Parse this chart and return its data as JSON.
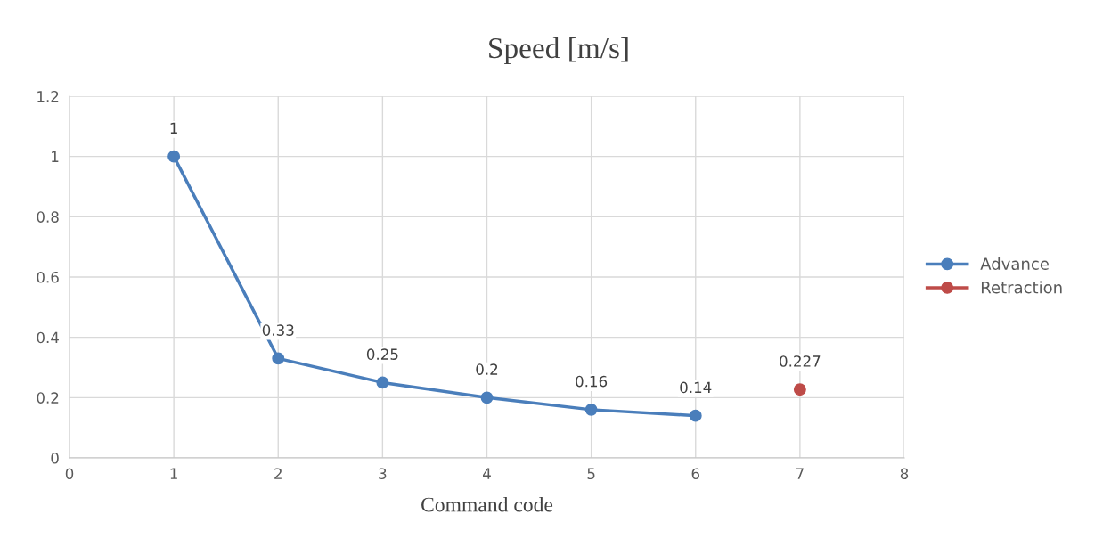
{
  "chart_data": {
    "type": "line",
    "title": "Speed [m/s]",
    "xlabel": "Command code",
    "series": [
      {
        "name": "Advance",
        "color": "#4a7ebb",
        "x": [
          1,
          2,
          3,
          4,
          5,
          6
        ],
        "values": [
          1,
          0.33,
          0.25,
          0.2,
          0.16,
          0.14
        ]
      },
      {
        "name": "Retraction",
        "color": "#be4b48",
        "x": [
          7
        ],
        "values": [
          0.227
        ]
      }
    ],
    "xlim": [
      0,
      8
    ],
    "xticks": [
      0,
      1,
      2,
      3,
      4,
      5,
      6,
      7,
      8
    ],
    "ylim": [
      0,
      1.2
    ],
    "yticks": [
      0,
      0.2,
      0.4,
      0.6,
      0.8,
      1,
      1.2
    ],
    "grid": true,
    "legend": "right",
    "marker": "circle",
    "line_style": "solid",
    "data_labels": true
  }
}
